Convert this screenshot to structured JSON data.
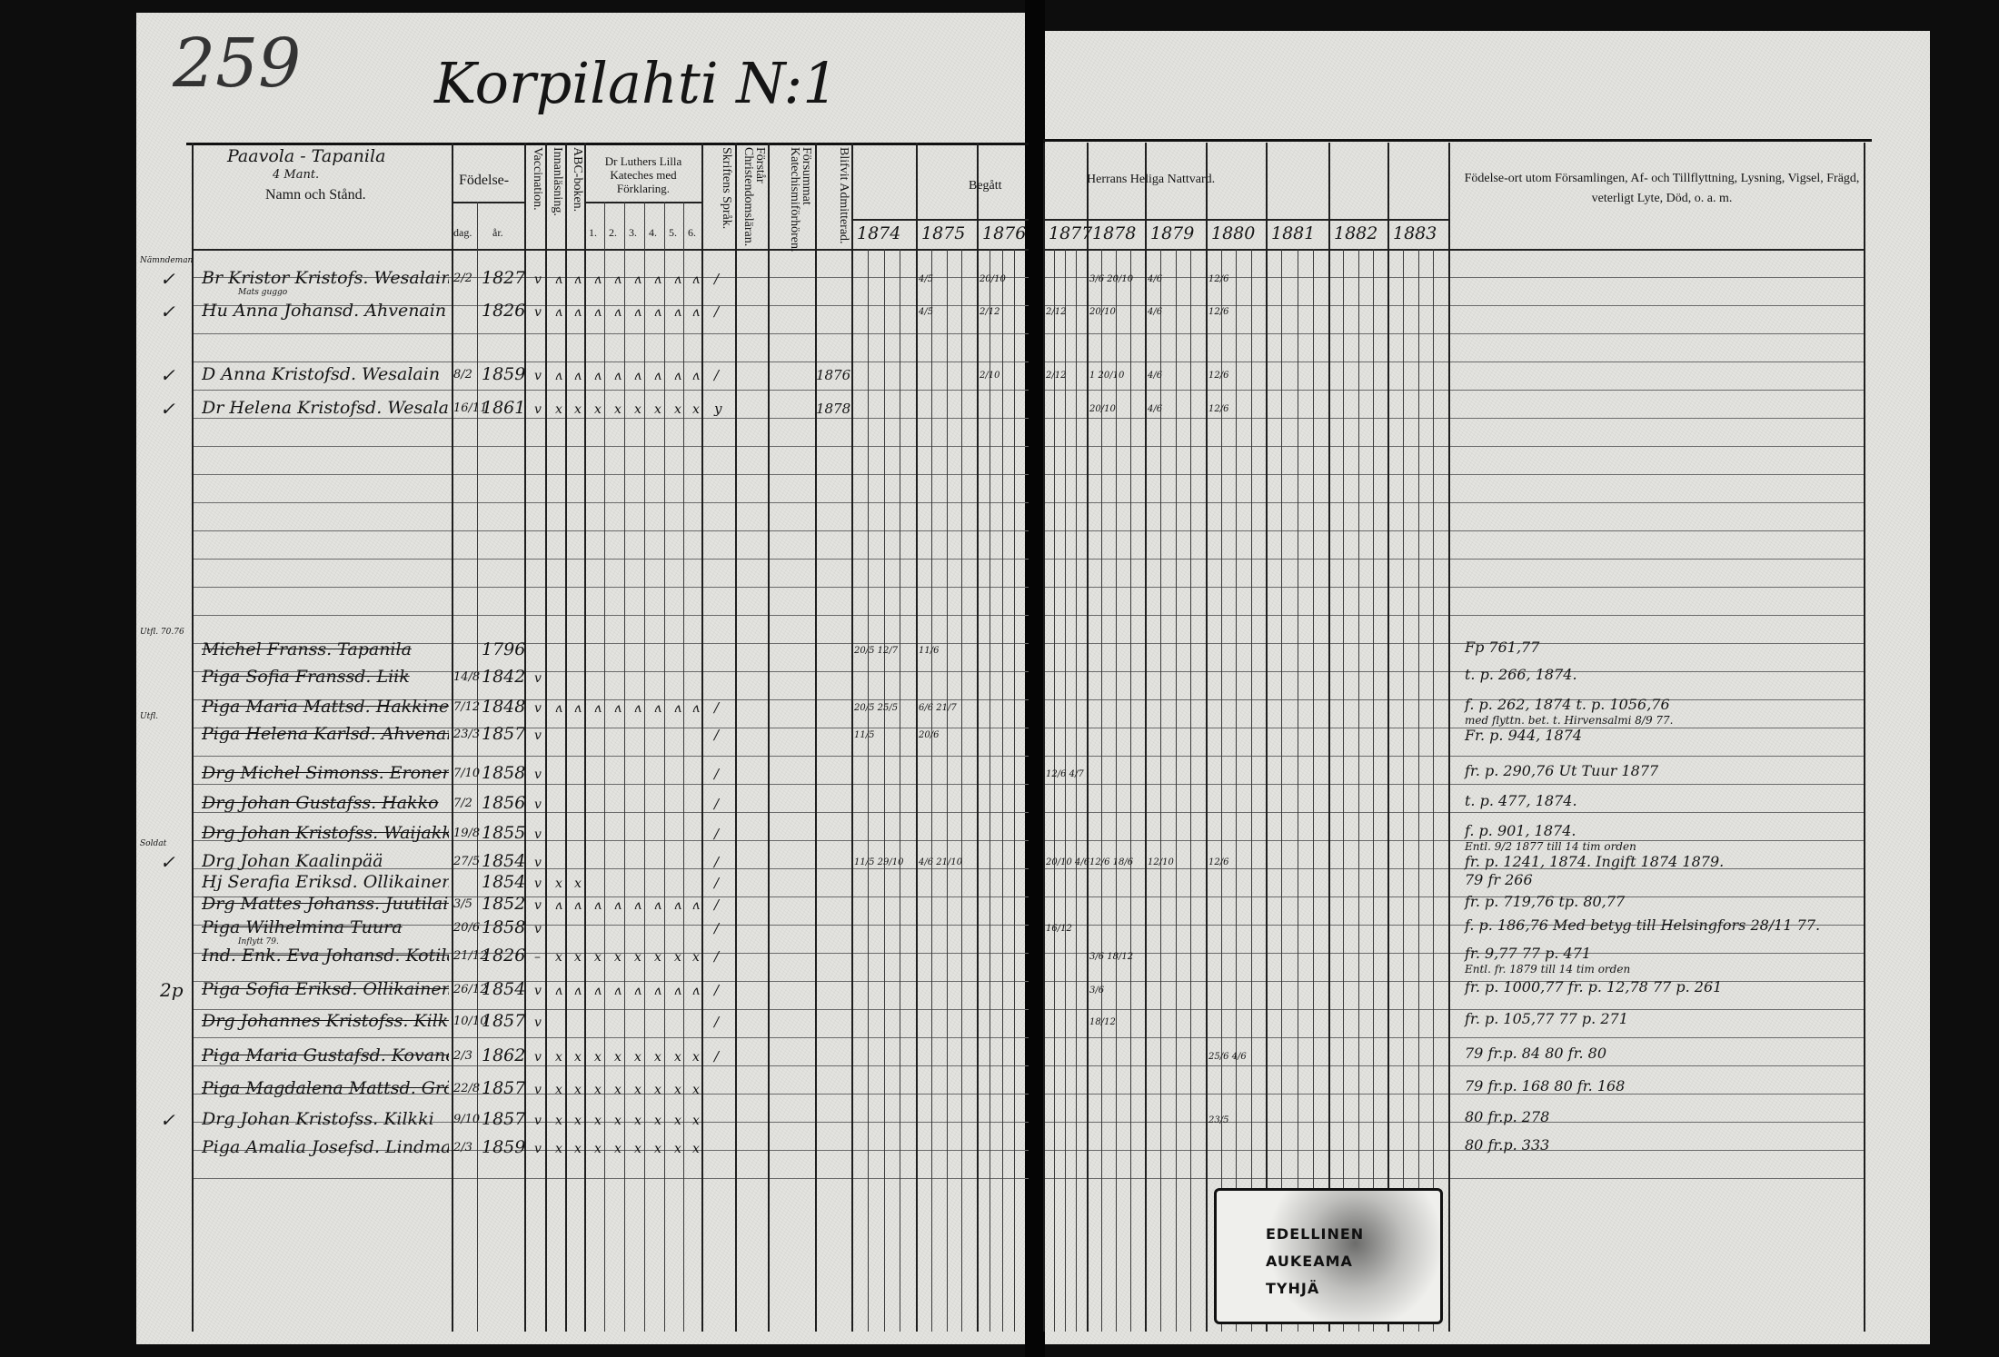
{
  "page_number": "259",
  "title": "Korpilahti N:1",
  "header": {
    "village": "Paavola - Tapanila",
    "village_note": "4 Mant.",
    "name_col": "Namn och Stånd.",
    "birth": "Födelse-",
    "birth_day": "dag.",
    "birth_year": "år.",
    "vaccination": "Vaccination.",
    "reading": "Innanläsning.",
    "abc": "ABC-boken.",
    "catechism": "Dr Luthers Lilla Kateches med Förklaring.",
    "catechism_parts": [
      "1.",
      "2.",
      "3.",
      "4.",
      "5.",
      "6."
    ],
    "scripture": "Skriftens Språk.",
    "understands": "Förstår Christendomsläran.",
    "missed": "Försummat Katechismiförhören.",
    "admitted": "Blifvit Admitterad.",
    "communion_left": "Begått",
    "communion_right": "Herrans Heliga Nattvard.",
    "years": [
      "1874",
      "1875",
      "1876",
      "1877",
      "1878",
      "1879",
      "1880",
      "1881",
      "1882",
      "1883"
    ],
    "remarks": "Födelse-ort utom Församlingen, Af- och Tillflyttning, Lysning, Vigsel, Frägd, veterligt Lyte, Död, o. a. m."
  },
  "entries": [
    {
      "margin": "✓",
      "pre": "Nämndeman",
      "name": "Br Kristor Kristofs. Wesalain",
      "sub": "Mats guggo",
      "struck": false,
      "day": "2/2",
      "year": "1827",
      "marks": "vʌʌʌʌʌʌʌʌ",
      "scripture": "/",
      "admitted": "",
      "communion": {
        "1875": "4/5",
        "1876": "20/10",
        "1878": "3/6 20/10",
        "1879": "4/6",
        "1880": "12/6"
      },
      "remarks": []
    },
    {
      "margin": "✓",
      "pre": "",
      "name": "Hu Anna Johansd. Ahvenain",
      "sub": "",
      "struck": false,
      "day": "",
      "year": "1826",
      "marks": "vʌʌʌʌʌʌʌʌ",
      "scripture": "/",
      "admitted": "",
      "communion": {
        "1875": "4/5",
        "1876": "2/12",
        "1877": "2/12",
        "1878": "20/10",
        "1879": "4/6",
        "1880": "12/6"
      },
      "remarks": []
    },
    {
      "margin": "✓",
      "pre": "",
      "name": "D Anna Kristofsd. Wesalain",
      "sub": "",
      "struck": false,
      "day": "8/2",
      "year": "1859",
      "marks": "vʌʌʌʌʌʌʌʌ",
      "scripture": "/",
      "admitted": "1876",
      "communion": {
        "1876": "2/10",
        "1877": "2/12",
        "1878": "1 20/10",
        "1879": "4/6",
        "1880": "12/6"
      },
      "remarks": []
    },
    {
      "margin": "✓",
      "pre": "",
      "name": "Dr Helena Kristofsd. Wesalain",
      "sub": "",
      "struck": false,
      "day": "16/11",
      "year": "1861",
      "marks": "vxxxxxxxx",
      "scripture": "y",
      "admitted": "1878",
      "communion": {
        "1878": "20/10",
        "1879": "4/6",
        "1880": "12/6"
      },
      "remarks": []
    },
    {
      "margin": "",
      "pre": "Utfl. 70.76",
      "name": "Michel Franss. Tapanila",
      "sub": "",
      "struck": true,
      "day": "",
      "year": "1796",
      "marks": "",
      "scripture": "",
      "admitted": "",
      "communion": {
        "1874": "20/5 12/7",
        "1875": "11/6"
      },
      "remarks": [
        "Fp 761,77"
      ]
    },
    {
      "margin": "",
      "pre": "",
      "name": "Piga Sofia Franssd. Liik",
      "sub": "",
      "struck": true,
      "day": "14/8",
      "year": "1842",
      "marks": "v",
      "scripture": "",
      "admitted": "",
      "communion": {},
      "remarks": [
        "t. p. 266, 1874."
      ]
    },
    {
      "margin": "",
      "pre": "",
      "name": "Piga Maria Mattsd. Hakkinen",
      "sub": "",
      "struck": true,
      "day": "7/12",
      "year": "1848",
      "marks": "vʌʌʌʌʌʌʌʌ",
      "scripture": "/",
      "admitted": "",
      "communion": {
        "1874": "20/5 25/5",
        "1875": "6/6 21/7"
      },
      "remarks": [
        "f. p. 262, 1874   t. p. 1056,76",
        "med flyttn. bet. t. Hirvensalmi 8/9 77."
      ]
    },
    {
      "margin": "",
      "pre": "Utfl.",
      "name": "Piga Helena Karlsd. Ahvenain",
      "sub": "",
      "struck": true,
      "day": "23/3",
      "year": "1857",
      "marks": "v",
      "scripture": "/",
      "admitted": "",
      "communion": {
        "1874": "11/5",
        "1875": "20/6"
      },
      "remarks": [
        "Fr. p. 944, 1874"
      ]
    },
    {
      "margin": "",
      "pre": "",
      "name": "Drg Michel Simonss. Eronen",
      "sub": "",
      "struck": true,
      "day": "7/10",
      "year": "1858",
      "marks": "v",
      "scripture": "/",
      "admitted": "",
      "communion": {
        "1877": "12/6 4/7"
      },
      "remarks": [
        "fr. p. 290,76   Ut Tuur 1877"
      ]
    },
    {
      "margin": "",
      "pre": "",
      "name": "Drg Johan Gustafss. Hakko",
      "sub": "",
      "struck": true,
      "day": "7/2",
      "year": "1856",
      "marks": "v",
      "scripture": "/",
      "admitted": "",
      "communion": {},
      "remarks": [
        "t. p. 477, 1874."
      ]
    },
    {
      "margin": "",
      "pre": "",
      "name": "Drg Johan Kristofss. Waijakka",
      "sub": "",
      "struck": true,
      "day": "19/8",
      "year": "1855",
      "marks": "v",
      "scripture": "/",
      "admitted": "",
      "communion": {},
      "remarks": [
        "f. p. 901, 1874.",
        "Entl. 9/2 1877 till 14 tim orden"
      ]
    },
    {
      "margin": "✓",
      "pre": "Soldat",
      "name": "Drg Johan Kaalinpää",
      "sub": "",
      "struck": false,
      "day": "27/5",
      "year": "1854",
      "marks": "v",
      "scripture": "/",
      "admitted": "",
      "communion": {
        "1874": "11/5 29/10",
        "1875": "4/6 21/10",
        "1877": "20/10 4/6",
        "1878": "12/6 18/6",
        "1879": "12/10",
        "1880": "12/6"
      },
      "remarks": [
        "fr. p. 1241, 1874. Ingift 1874 1879."
      ]
    },
    {
      "margin": "",
      "pre": "",
      "name": "Hj Serafia Eriksd. Ollikainen",
      "sub": "",
      "struck": false,
      "day": "",
      "year": "1854",
      "marks": "vxx",
      "scripture": "/",
      "admitted": "",
      "communion": {},
      "remarks": [
        "79 fr 266"
      ]
    },
    {
      "margin": "",
      "pre": "",
      "name": "Drg Mattes Johanss. Juutilainen",
      "sub": "",
      "struck": true,
      "day": "3/5",
      "year": "1852",
      "marks": "vʌʌʌʌʌʌʌʌ",
      "scripture": "/",
      "admitted": "",
      "communion": {},
      "remarks": [
        "fr. p. 719,76   tp. 80,77"
      ]
    },
    {
      "margin": "",
      "pre": "",
      "name": "Piga Wilhelmina Tuura",
      "sub": "Inflytt 79.",
      "struck": true,
      "day": "20/6",
      "year": "1858",
      "marks": "v",
      "scripture": "/",
      "admitted": "",
      "communion": {
        "1877": "16/12"
      },
      "remarks": [
        "f. p. 186,76 Med betyg till Helsingfors 28/11 77."
      ]
    },
    {
      "margin": "",
      "pre": "",
      "name": "Ind. Enk. Eva Johansd. Kotilainen",
      "sub": "",
      "struck": true,
      "day": "21/12",
      "year": "1826",
      "marks": "–xxxxxxxx",
      "scripture": "/",
      "admitted": "",
      "communion": {
        "1878": "3/6 18/12"
      },
      "remarks": [
        "fr. 9,77   77 p. 471",
        "Entl. fr. 1879 till 14 tim orden"
      ]
    },
    {
      "margin": "2p",
      "pre": "",
      "name": "Piga Sofia Eriksd. Ollikainen",
      "sub": "",
      "struck": true,
      "day": "26/12",
      "year": "1854",
      "marks": "vʌʌʌʌʌʌʌʌ",
      "scripture": "/",
      "admitted": "",
      "communion": {
        "1878": "3/6"
      },
      "remarks": [
        "fr. p. 1000,77   fr. p. 12,78   77 p. 261"
      ]
    },
    {
      "margin": "",
      "pre": "",
      "name": "Drg Johannes Kristofss. Kilkki",
      "sub": "",
      "struck": true,
      "day": "10/10",
      "year": "1857",
      "marks": "v",
      "scripture": "/",
      "admitted": "",
      "communion": {
        "1878": "18/12"
      },
      "remarks": [
        "fr. p. 105,77   77 p. 271"
      ]
    },
    {
      "margin": "",
      "pre": "",
      "name": "Piga Maria Gustafsd. Kovanen",
      "sub": "",
      "struck": true,
      "day": "2/3",
      "year": "1862",
      "marks": "vxxxxxxxx",
      "scripture": "/",
      "admitted": "",
      "communion": {
        "1880": "25/6 4/6"
      },
      "remarks": [
        "79 fr.p. 84   80 fr. 80"
      ]
    },
    {
      "margin": "",
      "pre": "",
      "name": "Piga Magdalena Mattsd. Grönroos",
      "sub": "",
      "struck": true,
      "day": "22/8",
      "year": "1857",
      "marks": "vxxxxxxxx",
      "scripture": "",
      "admitted": "",
      "communion": {},
      "remarks": [
        "79 fr.p. 168   80 fr. 168"
      ]
    },
    {
      "margin": "✓",
      "pre": "",
      "name": "Drg Johan Kristofss. Kilkki",
      "sub": "",
      "struck": false,
      "day": "9/10",
      "year": "1857",
      "marks": "vxxxxxxxx",
      "scripture": "",
      "admitted": "",
      "communion": {
        "1880": "23/5"
      },
      "remarks": [
        "80 fr.p. 278"
      ]
    },
    {
      "margin": "",
      "pre": "",
      "name": "Piga Amalia Josefsd. Lindman",
      "sub": "",
      "struck": false,
      "day": "2/3",
      "year": "1859",
      "marks": "vxxxxxxxx",
      "scripture": "",
      "admitted": "",
      "communion": {},
      "remarks": [
        "80 fr.p. 333"
      ]
    }
  ],
  "stamp": {
    "lines": [
      "EDELLINEN",
      "AUKEAMA",
      "TYHJÄ"
    ]
  }
}
